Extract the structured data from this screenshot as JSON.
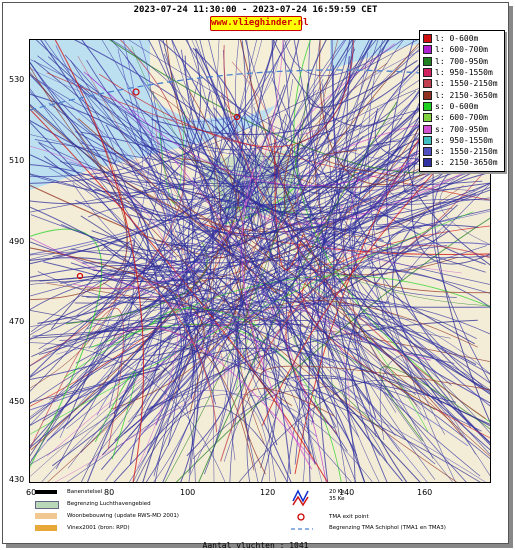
{
  "header": {
    "date_range": "2023-07-24 11:30:00 - 2023-07-24 16:59:59 CET",
    "brand": "www.vlieghinder.nl"
  },
  "axes": {
    "y_ticks": [
      "530",
      "510",
      "490",
      "470",
      "450",
      "430"
    ],
    "x_ticks": [
      "60",
      "80",
      "100",
      "120",
      "140",
      "160"
    ]
  },
  "legend": {
    "items": [
      {
        "label": "l: 0-600m",
        "color": "#d01010"
      },
      {
        "label": "l: 600-700m",
        "color": "#b020d0"
      },
      {
        "label": "l: 700-950m",
        "color": "#208020"
      },
      {
        "label": "l: 950-1550m",
        "color": "#d02060"
      },
      {
        "label": "l: 1550-2150m",
        "color": "#c04050"
      },
      {
        "label": "l: 2150-3650m",
        "color": "#903020"
      },
      {
        "label": "s: 0-600m",
        "color": "#20d020"
      },
      {
        "label": "s: 600-700m",
        "color": "#80d040"
      },
      {
        "label": "s: 700-950m",
        "color": "#d050d0"
      },
      {
        "label": "s: 950-1550m",
        "color": "#40c0c0"
      },
      {
        "label": "s: 1550-2150m",
        "color": "#5050c0"
      },
      {
        "label": "s: 2150-3650m",
        "color": "#3030a0"
      }
    ]
  },
  "bottom_legend": {
    "runway": "Banenstelsel",
    "airport_boundary": "Begrenzing Luchthavengebied",
    "housing": "Woonbebouwing (update RWS-MD 2001)",
    "vinex": "Vinex2001 (bron: RPD)",
    "noise_20": "20 Ke",
    "noise_35": "35 Ke",
    "tma_exit": "TMA exit point",
    "tma_boundary": "Begrenzing TMA Schiphol  (TMA1 en TMA3)"
  },
  "footer": {
    "flights": "Aantal vluchten : 1041"
  }
}
